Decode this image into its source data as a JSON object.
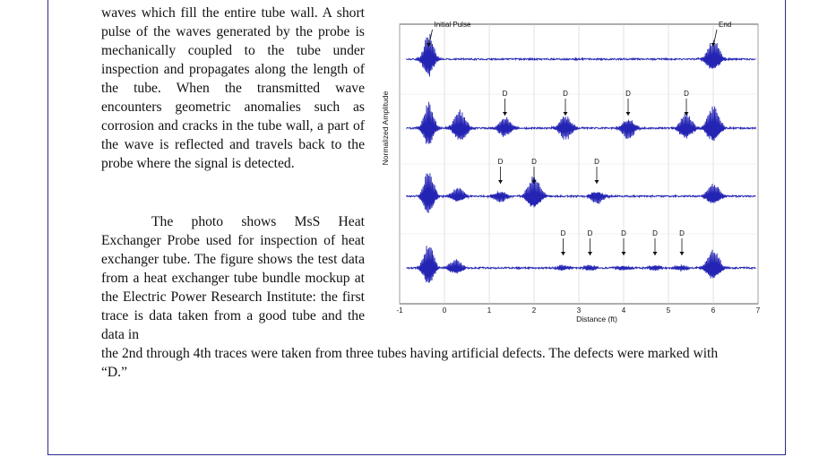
{
  "text": {
    "p1": "waves which fill the entire tube wall. A short pulse of the waves generated by the probe is mechanically coupled to the tube under inspection and propagates along the length of the tube. When the transmitted wave encounters geometric anomalies such as corrosion and cracks in the tube wall, a part of the wave is reflected and travels back to the probe where the signal is detected.",
    "p2": "The photo shows MsS Heat Exchanger Probe used for inspection of heat exchanger tube. The figure shows the test data from a heat exchanger tube bundle mockup at the Electric Power Research Institute: the first trace is data taken from a good tube and the data in",
    "p2_cont": "the 2nd through 4th traces were taken from three tubes having artificial defects. The defects were marked with “D.”"
  },
  "chart_data": {
    "type": "line",
    "xlabel": "Distance (ft)",
    "ylabel": "Normalized Amplitude",
    "xlim": [
      -1,
      7
    ],
    "xticks": [
      -1,
      0,
      1,
      2,
      3,
      4,
      5,
      6,
      7
    ],
    "grid": true,
    "line_color": "#2424b4",
    "traces": [
      {
        "bursts": [
          {
            "x": -0.35,
            "amp": 1.0
          },
          {
            "x": 6.0,
            "amp": 0.75
          }
        ],
        "annotations": [
          {
            "text": "Initial Pulse",
            "x": -0.35
          },
          {
            "text": "End",
            "x": 6.0
          }
        ]
      },
      {
        "bursts": [
          {
            "x": -0.35,
            "amp": 1.0
          },
          {
            "x": 0.35,
            "amp": 0.7
          },
          {
            "x": 1.35,
            "amp": 0.45
          },
          {
            "x": 2.7,
            "amp": 0.55
          },
          {
            "x": 4.1,
            "amp": 0.45
          },
          {
            "x": 5.4,
            "amp": 0.6
          },
          {
            "x": 6.0,
            "amp": 0.85
          }
        ],
        "annotations": [
          {
            "text": "D",
            "x": 1.35
          },
          {
            "text": "D",
            "x": 2.7
          },
          {
            "text": "D",
            "x": 4.1
          },
          {
            "text": "D",
            "x": 5.4
          }
        ]
      },
      {
        "bursts": [
          {
            "x": -0.35,
            "amp": 1.0
          },
          {
            "x": 0.3,
            "amp": 0.35
          },
          {
            "x": 1.25,
            "amp": 0.25
          },
          {
            "x": 2.0,
            "amp": 0.8
          },
          {
            "x": 3.4,
            "amp": 0.3
          },
          {
            "x": 6.0,
            "amp": 0.5
          }
        ],
        "annotations": [
          {
            "text": "D",
            "x": 1.25
          },
          {
            "text": "D",
            "x": 2.0
          },
          {
            "text": "D",
            "x": 3.4
          }
        ]
      },
      {
        "bursts": [
          {
            "x": -0.35,
            "amp": 1.0
          },
          {
            "x": 0.25,
            "amp": 0.35
          },
          {
            "x": 2.65,
            "amp": 0.12
          },
          {
            "x": 3.25,
            "amp": 0.12
          },
          {
            "x": 4.0,
            "amp": 0.12
          },
          {
            "x": 4.7,
            "amp": 0.12
          },
          {
            "x": 5.3,
            "amp": 0.12
          },
          {
            "x": 6.0,
            "amp": 0.75
          }
        ],
        "annotations": [
          {
            "text": "D",
            "x": 2.65
          },
          {
            "text": "D",
            "x": 3.25
          },
          {
            "text": "D",
            "x": 4.0
          },
          {
            "text": "D",
            "x": 4.7
          },
          {
            "text": "D",
            "x": 5.3
          }
        ]
      }
    ]
  }
}
